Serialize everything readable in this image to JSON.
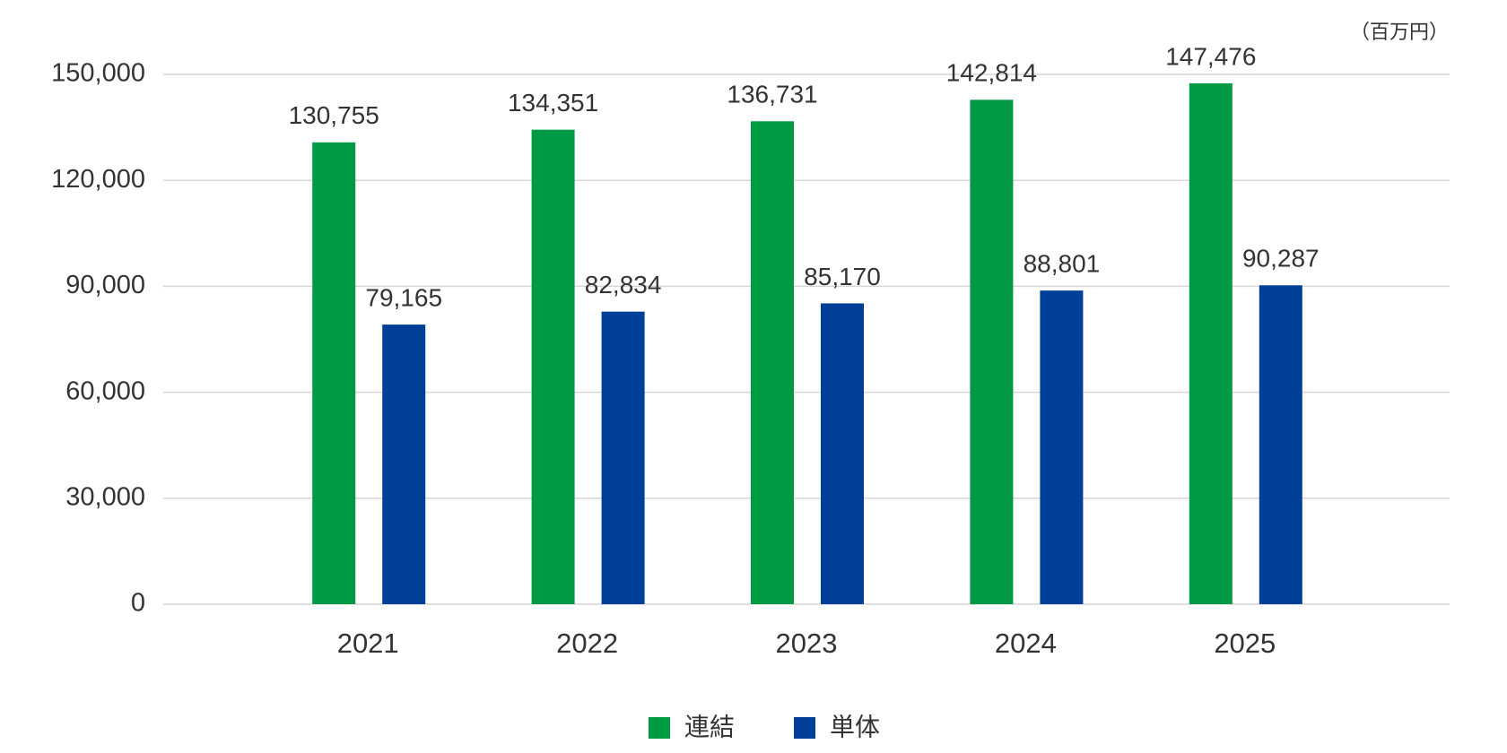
{
  "chart_data": {
    "type": "bar",
    "unit_label": "（百万円）",
    "categories": [
      "2021",
      "2022",
      "2023",
      "2024",
      "2025"
    ],
    "series": [
      {
        "name": "連結",
        "color": "#009944",
        "values": [
          130755,
          134351,
          136731,
          142814,
          147476
        ],
        "value_labels": [
          "130,755",
          "134,351",
          "136,731",
          "142,814",
          "147,476"
        ]
      },
      {
        "name": "単体",
        "color": "#003f98",
        "values": [
          79165,
          82834,
          85170,
          88801,
          90287
        ],
        "value_labels": [
          "79,165",
          "82,834",
          "85,170",
          "88,801",
          "90,287"
        ]
      }
    ],
    "ylim": [
      0,
      150000
    ],
    "yticks": [
      0,
      {
        "value": 30000,
        "label": "30,000"
      },
      {
        "value": 60000,
        "label": "60,000"
      },
      {
        "value": 90000,
        "label": "90,000"
      },
      {
        "value": 120000,
        "label": "120,000"
      },
      {
        "value": 150000,
        "label": "150,000"
      }
    ],
    "grid": true
  }
}
